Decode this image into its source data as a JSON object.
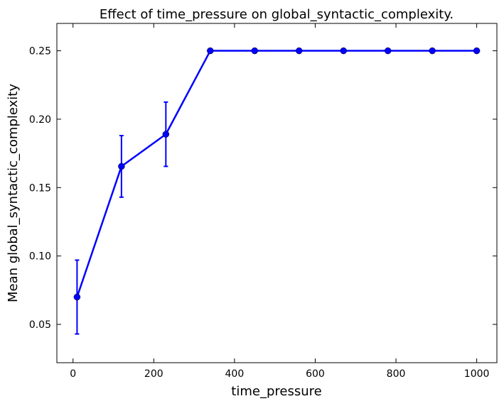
{
  "chart_data": {
    "type": "line",
    "title": "Effect of time_pressure on global_syntactic_complexity.",
    "xlabel": "time_pressure",
    "ylabel": "Mean global_syntactic_complexity",
    "xlim": [
      -40,
      1050
    ],
    "ylim": [
      0.022,
      0.27
    ],
    "xticks": [
      0,
      200,
      400,
      600,
      800,
      1000
    ],
    "xtick_labels": [
      "0",
      "200",
      "400",
      "600",
      "800",
      "1000"
    ],
    "yticks": [
      0.05,
      0.1,
      0.15,
      0.2,
      0.25
    ],
    "ytick_labels": [
      "0.05",
      "0.10",
      "0.15",
      "0.20",
      "0.25"
    ],
    "grid": false,
    "series": [
      {
        "color": "#0000ff",
        "points": [
          {
            "x": 10,
            "y": 0.07,
            "err": 0.027
          },
          {
            "x": 120,
            "y": 0.1655,
            "err": 0.0225
          },
          {
            "x": 230,
            "y": 0.189,
            "err": 0.0235
          },
          {
            "x": 340,
            "y": 0.25,
            "err": 0
          },
          {
            "x": 450,
            "y": 0.25,
            "err": 0
          },
          {
            "x": 560,
            "y": 0.25,
            "err": 0
          },
          {
            "x": 670,
            "y": 0.25,
            "err": 0
          },
          {
            "x": 780,
            "y": 0.25,
            "err": 0
          },
          {
            "x": 890,
            "y": 0.25,
            "err": 0
          },
          {
            "x": 1000,
            "y": 0.25,
            "err": 0
          }
        ]
      }
    ]
  }
}
